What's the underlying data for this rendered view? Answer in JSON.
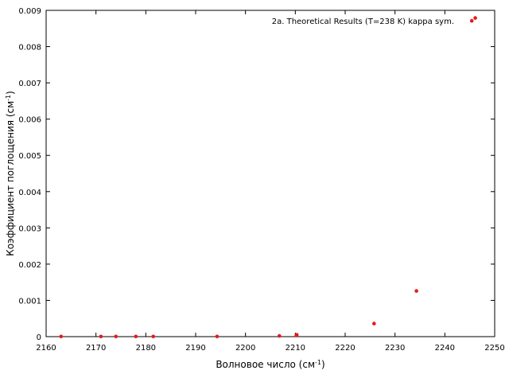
{
  "chart_data": {
    "type": "scatter",
    "legend_label": "2a. Theoretical Results (T=238 K) kappa sym.",
    "legend_position": "top-right",
    "xlabel": {
      "main": "Волновое число (см",
      "sup": "-1",
      "tail": ")"
    },
    "ylabel": {
      "main": "Коэффициент поглощения (см",
      "sup": "-1",
      "tail": ")"
    },
    "xlim": [
      2160,
      2250
    ],
    "ylim": [
      0,
      0.009
    ],
    "x_ticks": [
      2160,
      2170,
      2180,
      2190,
      2200,
      2210,
      2220,
      2230,
      2240,
      2250
    ],
    "y_ticks": [
      0,
      0.001,
      0.002,
      0.003,
      0.004,
      0.005,
      0.006,
      0.007,
      0.008,
      0.009
    ],
    "x_tick_labels": [
      "2160",
      "2170",
      "2180",
      "2190",
      "2200",
      "2210",
      "2220",
      "2230",
      "2240",
      "2250"
    ],
    "y_tick_labels": [
      "0",
      "0.001",
      "0.002",
      "0.003",
      "0.004",
      "0.005",
      "0.006",
      "0.007",
      "0.008",
      "0.009"
    ],
    "grid": false,
    "marker_color": "#e41a1c",
    "points": [
      {
        "x": 2163,
        "y": 5e-06
      },
      {
        "x": 2171,
        "y": 5e-06
      },
      {
        "x": 2174,
        "y": 5e-06
      },
      {
        "x": 2178,
        "y": 5e-06
      },
      {
        "x": 2181.5,
        "y": 5e-06
      },
      {
        "x": 2194.3,
        "y": 5e-06
      },
      {
        "x": 2206.8,
        "y": 2e-05
      },
      {
        "x": 2210.2,
        "y": 3e-05
      },
      {
        "x": 2210.3,
        "y": 5e-05
      },
      {
        "x": 2225.8,
        "y": 0.00036
      },
      {
        "x": 2234.3,
        "y": 0.00126
      },
      {
        "x": 2245.4,
        "y": 0.00871
      },
      {
        "x": 2246.1,
        "y": 0.00879
      }
    ]
  }
}
